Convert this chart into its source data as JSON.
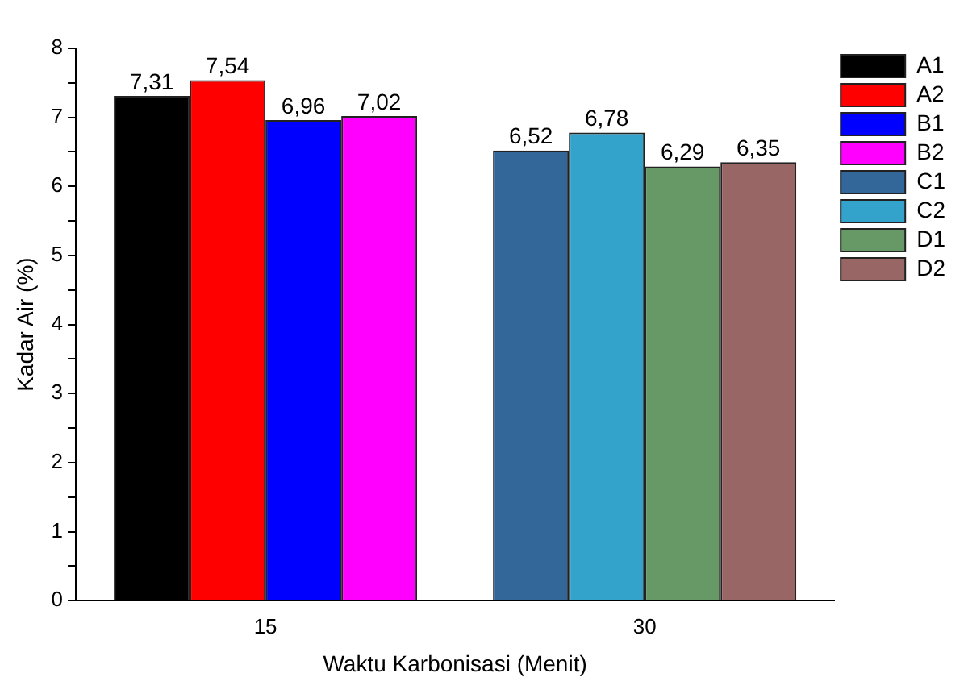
{
  "chart_data": {
    "type": "bar",
    "xlabel": "Waktu Karbonisasi (Menit)",
    "ylabel": "Kadar Air (%)",
    "categories": [
      "15",
      "30"
    ],
    "series": [
      {
        "name": "A1",
        "color": "#000000",
        "values": [
          7.31,
          null
        ],
        "value_labels": [
          "7,31",
          null
        ]
      },
      {
        "name": "A2",
        "color": "#ff0000",
        "values": [
          7.54,
          null
        ],
        "value_labels": [
          "7,54",
          null
        ]
      },
      {
        "name": "B1",
        "color": "#0000ff",
        "values": [
          6.96,
          null
        ],
        "value_labels": [
          "6,96",
          null
        ]
      },
      {
        "name": "B2",
        "color": "#ff00ff",
        "values": [
          7.02,
          null
        ],
        "value_labels": [
          "7,02",
          null
        ]
      },
      {
        "name": "C1",
        "color": "#336699",
        "values": [
          null,
          6.52
        ],
        "value_labels": [
          null,
          "6,52"
        ]
      },
      {
        "name": "C2",
        "color": "#33a3cc",
        "values": [
          null,
          6.78
        ],
        "value_labels": [
          null,
          "6,78"
        ]
      },
      {
        "name": "D1",
        "color": "#669966",
        "values": [
          null,
          6.29
        ],
        "value_labels": [
          null,
          "6,29"
        ]
      },
      {
        "name": "D2",
        "color": "#996666",
        "values": [
          null,
          6.35
        ],
        "value_labels": [
          null,
          "6,35"
        ]
      }
    ],
    "ylim": [
      0,
      8
    ],
    "yticks": [
      0,
      {
        "value": 0.5,
        "label": null
      },
      1,
      {
        "value": 1.5,
        "label": null
      },
      2,
      {
        "value": 2.5,
        "label": null
      },
      3,
      {
        "value": 3.5,
        "label": null
      },
      4,
      {
        "value": 4.5,
        "label": null
      },
      5,
      {
        "value": 5.5,
        "label": null
      },
      6,
      {
        "value": 6.5,
        "label": null
      },
      7,
      {
        "value": 7.5,
        "label": null
      },
      8
    ],
    "legend": "top right",
    "grid": false
  }
}
